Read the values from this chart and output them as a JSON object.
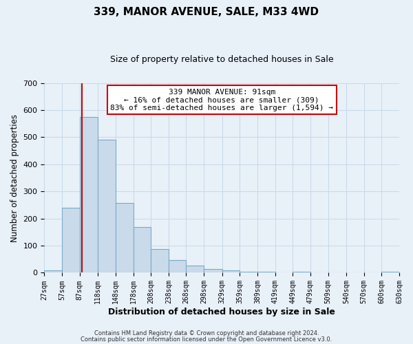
{
  "title": "339, MANOR AVENUE, SALE, M33 4WD",
  "subtitle": "Size of property relative to detached houses in Sale",
  "xlabel": "Distribution of detached houses by size in Sale",
  "ylabel": "Number of detached properties",
  "bar_color": "#c9daea",
  "bar_edge_color": "#7aaac8",
  "bin_edges": [
    27,
    57,
    87,
    118,
    148,
    178,
    208,
    238,
    268,
    298,
    329,
    359,
    389,
    419,
    449,
    479,
    509,
    540,
    570,
    600,
    630
  ],
  "bin_labels": [
    "27sqm",
    "57sqm",
    "87sqm",
    "118sqm",
    "148sqm",
    "178sqm",
    "208sqm",
    "238sqm",
    "268sqm",
    "298sqm",
    "329sqm",
    "359sqm",
    "389sqm",
    "419sqm",
    "449sqm",
    "479sqm",
    "509sqm",
    "540sqm",
    "570sqm",
    "600sqm",
    "630sqm"
  ],
  "counts": [
    10,
    240,
    575,
    490,
    258,
    168,
    88,
    47,
    27,
    13,
    10,
    5,
    4,
    0,
    4,
    0,
    0,
    0,
    0,
    4
  ],
  "vline_x": 91,
  "vline_color": "#cc0000",
  "annotation_line1": "339 MANOR AVENUE: 91sqm",
  "annotation_line2": "← 16% of detached houses are smaller (309)",
  "annotation_line3": "83% of semi-detached houses are larger (1,594) →",
  "annotation_box_color": "#ffffff",
  "annotation_box_edge_color": "#cc0000",
  "ylim": [
    0,
    700
  ],
  "yticks": [
    0,
    100,
    200,
    300,
    400,
    500,
    600,
    700
  ],
  "grid_color": "#c8d8e8",
  "bg_color": "#e8f0f8",
  "title_fontsize": 11,
  "subtitle_fontsize": 9,
  "footer1": "Contains HM Land Registry data © Crown copyright and database right 2024.",
  "footer2": "Contains public sector information licensed under the Open Government Licence v3.0."
}
